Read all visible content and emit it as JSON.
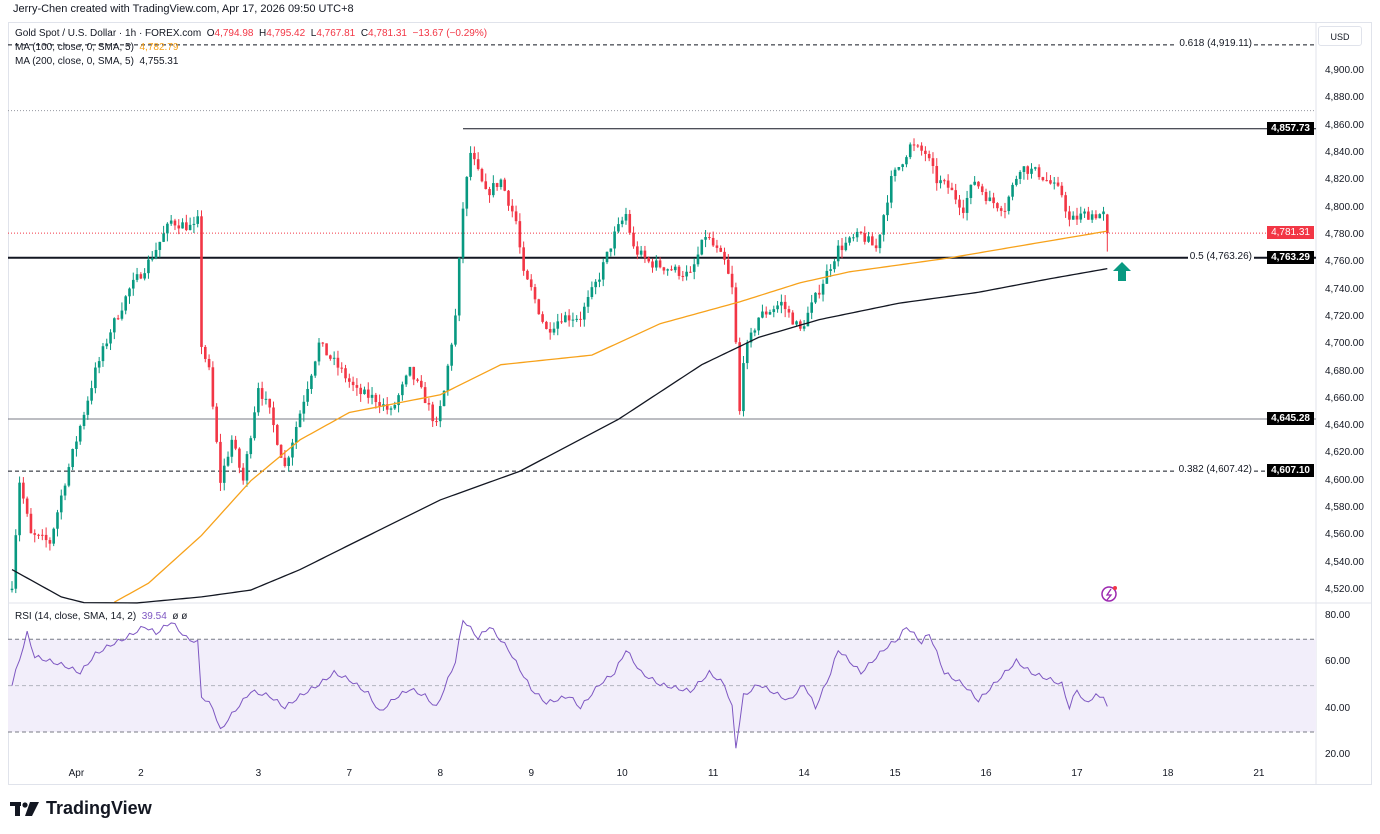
{
  "credit": "Jerry-Chen created with TradingView.com, Apr 17, 2026 09:50 UTC+8",
  "legend": {
    "symbol": "Gold Spot / U.S. Dollar · 1h · FOREX.com",
    "o_label": "O",
    "o": "4,794.98",
    "h_label": "H",
    "h": "4,795.42",
    "l_label": "L",
    "l": "4,767.81",
    "c_label": "C",
    "c": "4,781.31",
    "change": "−13.67 (−0.29%)",
    "ma100_label": "MA (100, close, 0, SMA, 5)",
    "ma100_value": "4,782.79",
    "ma200_label": "MA (200, close, 0, SMA, 5)",
    "ma200_value": "4,755.31",
    "rsi_label": "RSI (14, close, SMA, 14, 2)",
    "rsi_value": "39.54",
    "rsi_extra": "ø ø"
  },
  "currency": "USD",
  "logo_text": "TradingView",
  "colors": {
    "up": "#089981",
    "down": "#f23645",
    "ma100": "#f7a21b",
    "ma200": "#131722",
    "rsi": "#7e57c2",
    "rsi_band": "#f2eefa"
  },
  "chart_data": {
    "type": "candlestick",
    "title": "Gold Spot / U.S. Dollar · 1h · FOREX.com",
    "ylim": [
      4510,
      4920
    ],
    "price_ticks": [
      "4,900.00",
      "4,880.00",
      "4,860.00",
      "4,840.00",
      "4,820.00",
      "4,800.00",
      "4,780.00",
      "4,760.00",
      "4,740.00",
      "4,720.00",
      "4,700.00",
      "4,680.00",
      "4,660.00",
      "4,640.00",
      "4,620.00",
      "4,600.00",
      "4,580.00",
      "4,560.00",
      "4,540.00",
      "4,520.00"
    ],
    "price_tick_values": [
      4900,
      4880,
      4860,
      4840,
      4820,
      4800,
      4780,
      4760,
      4740,
      4720,
      4700,
      4680,
      4660,
      4640,
      4620,
      4600,
      4580,
      4560,
      4540,
      4520
    ],
    "x_ticks": [
      {
        "label": "Apr",
        "bar": 17
      },
      {
        "label": "2",
        "bar": 34
      },
      {
        "label": "3",
        "bar": 65
      },
      {
        "label": "7",
        "bar": 89
      },
      {
        "label": "8",
        "bar": 113
      },
      {
        "label": "9",
        "bar": 137
      },
      {
        "label": "10",
        "bar": 161
      },
      {
        "label": "11",
        "bar": 185
      },
      {
        "label": "14",
        "bar": 209
      },
      {
        "label": "15",
        "bar": 233
      },
      {
        "label": "16",
        "bar": 257
      },
      {
        "label": "17",
        "bar": 281
      },
      {
        "label": "18",
        "bar": 305
      },
      {
        "label": "21",
        "bar": 329
      }
    ],
    "bar_count": 290,
    "close_waypoints": [
      [
        0,
        4525
      ],
      [
        2,
        4600
      ],
      [
        5,
        4560
      ],
      [
        10,
        4555
      ],
      [
        14,
        4600
      ],
      [
        18,
        4640
      ],
      [
        22,
        4680
      ],
      [
        26,
        4710
      ],
      [
        31,
        4740
      ],
      [
        36,
        4760
      ],
      [
        42,
        4790
      ],
      [
        48,
        4785
      ],
      [
        49,
        4790
      ],
      [
        50,
        4700
      ],
      [
        52,
        4680
      ],
      [
        55,
        4600
      ],
      [
        58,
        4630
      ],
      [
        61,
        4600
      ],
      [
        65,
        4670
      ],
      [
        68,
        4650
      ],
      [
        72,
        4610
      ],
      [
        76,
        4650
      ],
      [
        81,
        4700
      ],
      [
        87,
        4680
      ],
      [
        91,
        4665
      ],
      [
        96,
        4660
      ],
      [
        100,
        4650
      ],
      [
        105,
        4680
      ],
      [
        109,
        4660
      ],
      [
        112,
        4640
      ],
      [
        114,
        4665
      ],
      [
        117,
        4720
      ],
      [
        119,
        4800
      ],
      [
        121,
        4840
      ],
      [
        125,
        4810
      ],
      [
        129,
        4820
      ],
      [
        133,
        4790
      ],
      [
        135,
        4750
      ],
      [
        137,
        4740
      ],
      [
        141,
        4710
      ],
      [
        145,
        4720
      ],
      [
        150,
        4720
      ],
      [
        155,
        4750
      ],
      [
        159,
        4780
      ],
      [
        162,
        4795
      ],
      [
        164,
        4770
      ],
      [
        168,
        4760
      ],
      [
        174,
        4755
      ],
      [
        179,
        4750
      ],
      [
        183,
        4780
      ],
      [
        188,
        4760
      ],
      [
        190,
        4740
      ],
      [
        191,
        4700
      ],
      [
        192,
        4650
      ],
      [
        193,
        4690
      ],
      [
        197,
        4720
      ],
      [
        203,
        4730
      ],
      [
        208,
        4710
      ],
      [
        213,
        4740
      ],
      [
        218,
        4770
      ],
      [
        224,
        4780
      ],
      [
        228,
        4770
      ],
      [
        232,
        4820
      ],
      [
        237,
        4845
      ],
      [
        241,
        4840
      ],
      [
        244,
        4820
      ],
      [
        247,
        4815
      ],
      [
        251,
        4800
      ],
      [
        254,
        4820
      ],
      [
        258,
        4805
      ],
      [
        262,
        4800
      ],
      [
        266,
        4830
      ],
      [
        271,
        4825
      ],
      [
        277,
        4810
      ],
      [
        279,
        4790
      ],
      [
        283,
        4795
      ],
      [
        288,
        4794.98
      ]
    ],
    "last_candle": {
      "o": 4794.98,
      "h": 4795.42,
      "l": 4767.81,
      "c": 4781.31
    },
    "ma100_waypoints": [
      [
        23,
        4505
      ],
      [
        36,
        4525
      ],
      [
        50,
        4560
      ],
      [
        63,
        4600
      ],
      [
        76,
        4630
      ],
      [
        89,
        4650
      ],
      [
        113,
        4663
      ],
      [
        129,
        4685
      ],
      [
        153,
        4692
      ],
      [
        171,
        4715
      ],
      [
        192,
        4731
      ],
      [
        208,
        4745
      ],
      [
        221,
        4753
      ],
      [
        247,
        4763
      ],
      [
        266,
        4772
      ],
      [
        289,
        4782.79
      ]
    ],
    "ma200_waypoints": [
      [
        0,
        4535
      ],
      [
        13,
        4515
      ],
      [
        23,
        4508
      ],
      [
        50,
        4515
      ],
      [
        63,
        4520
      ],
      [
        76,
        4535
      ],
      [
        89,
        4553
      ],
      [
        113,
        4586
      ],
      [
        134,
        4607
      ],
      [
        160,
        4645
      ],
      [
        182,
        4685
      ],
      [
        197,
        4705
      ],
      [
        213,
        4718
      ],
      [
        234,
        4730
      ],
      [
        255,
        4738
      ],
      [
        274,
        4748
      ],
      [
        289,
        4755.31
      ]
    ],
    "levels": [
      {
        "price": 4919.11,
        "label": "0.618 (4,919.11)",
        "style": "dashed"
      },
      {
        "price": 4871,
        "label": "",
        "style": "dotted"
      },
      {
        "price": 4857.73,
        "tag": "4,857.73",
        "style": "solid",
        "from_bar": 119
      },
      {
        "price": 4781.31,
        "tag": "4,781.31",
        "style": "current"
      },
      {
        "price": 4763.29,
        "tag": "4,763.29",
        "label": "0.5 (4,763.26)",
        "style": "thick"
      },
      {
        "price": 4645.28,
        "tag": "4,645.28",
        "style": "gray"
      },
      {
        "price": 4607.1,
        "tag": "4,607.10",
        "label": "0.382 (4,607.42)",
        "style": "dashed"
      }
    ],
    "rsi": {
      "ylim": [
        17,
        84
      ],
      "ticks": [
        "80.00",
        "60.00",
        "40.00",
        "20.00"
      ],
      "tick_values": [
        80,
        60,
        40,
        20
      ],
      "bands": [
        70,
        50,
        30
      ],
      "waypoints": [
        [
          0,
          50
        ],
        [
          4,
          72
        ],
        [
          6,
          62
        ],
        [
          10,
          60
        ],
        [
          14,
          58
        ],
        [
          18,
          55
        ],
        [
          22,
          63
        ],
        [
          26,
          67
        ],
        [
          30,
          70
        ],
        [
          35,
          75
        ],
        [
          38,
          72
        ],
        [
          42,
          77
        ],
        [
          46,
          70
        ],
        [
          49,
          68
        ],
        [
          50,
          45
        ],
        [
          53,
          40
        ],
        [
          55,
          30
        ],
        [
          57,
          35
        ],
        [
          63,
          47
        ],
        [
          68,
          45
        ],
        [
          72,
          40
        ],
        [
          76,
          45
        ],
        [
          81,
          50
        ],
        [
          85,
          55
        ],
        [
          89,
          52
        ],
        [
          94,
          46
        ],
        [
          97,
          38
        ],
        [
          101,
          44
        ],
        [
          105,
          48
        ],
        [
          109,
          45
        ],
        [
          112,
          40
        ],
        [
          117,
          60
        ],
        [
          119,
          78
        ],
        [
          123,
          70
        ],
        [
          126,
          75
        ],
        [
          131,
          65
        ],
        [
          137,
          48
        ],
        [
          141,
          42
        ],
        [
          147,
          45
        ],
        [
          150,
          40
        ],
        [
          155,
          50
        ],
        [
          159,
          55
        ],
        [
          162,
          65
        ],
        [
          166,
          55
        ],
        [
          171,
          50
        ],
        [
          179,
          47
        ],
        [
          184,
          55
        ],
        [
          188,
          50
        ],
        [
          190,
          40
        ],
        [
          191,
          23
        ],
        [
          193,
          45
        ],
        [
          197,
          50
        ],
        [
          205,
          43
        ],
        [
          209,
          50
        ],
        [
          212,
          40
        ],
        [
          216,
          55
        ],
        [
          218,
          65
        ],
        [
          224,
          55
        ],
        [
          230,
          65
        ],
        [
          234,
          70
        ],
        [
          236,
          75
        ],
        [
          240,
          68
        ],
        [
          242,
          72
        ],
        [
          246,
          55
        ],
        [
          251,
          50
        ],
        [
          255,
          43
        ],
        [
          262,
          55
        ],
        [
          265,
          60
        ],
        [
          269,
          55
        ],
        [
          274,
          52
        ],
        [
          277,
          50
        ],
        [
          279,
          40
        ],
        [
          281,
          48
        ],
        [
          283,
          42
        ],
        [
          286,
          45
        ],
        [
          288,
          45
        ],
        [
          289,
          39.54
        ]
      ]
    }
  }
}
